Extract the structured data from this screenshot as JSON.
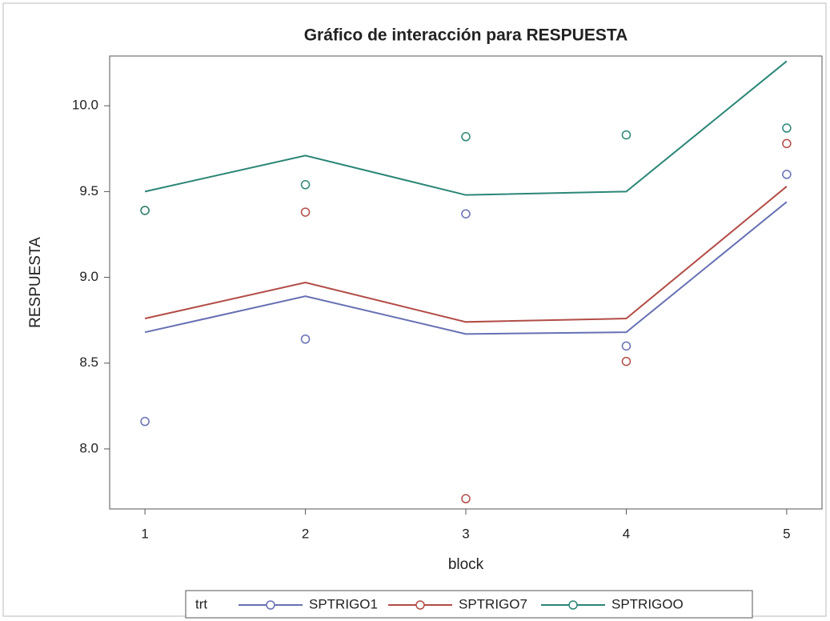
{
  "chart_data": {
    "type": "line",
    "title": "Gráfico de interacción para RESPUESTA",
    "x_label": "block",
    "y_label": "RESPUESTA",
    "legend_title": "trt",
    "x": [
      1,
      2,
      3,
      4,
      5
    ],
    "series": [
      {
        "name": "SPTRIGO1",
        "color": "#6670b4",
        "values": [
          8.68,
          8.89,
          8.67,
          8.68,
          9.44
        ],
        "points": [
          8.16,
          8.64,
          9.37,
          8.6,
          9.6
        ]
      },
      {
        "name": "SPTRIGO7",
        "color": "#b24c46",
        "values": [
          8.76,
          8.97,
          8.74,
          8.76,
          9.53
        ],
        "points": [
          9.39,
          9.38,
          7.71,
          8.51,
          9.78
        ]
      },
      {
        "name": "SPTRIGOO",
        "color": "#2a8676",
        "values": [
          9.5,
          9.71,
          9.48,
          9.5,
          10.26
        ],
        "points": [
          9.39,
          9.54,
          9.82,
          9.83,
          9.87
        ]
      }
    ],
    "xlim": [
      0.78,
      5.22
    ],
    "ylim": [
      7.65,
      10.29
    ],
    "xticks": [
      1,
      2,
      3,
      4,
      5
    ],
    "yticks": [
      {
        "value": 8,
        "label": "8.0"
      },
      8.5,
      {
        "value": 9,
        "label": "9.0"
      },
      9.5,
      {
        "value": 10,
        "label": "10.0"
      }
    ],
    "legend": "bottom"
  }
}
